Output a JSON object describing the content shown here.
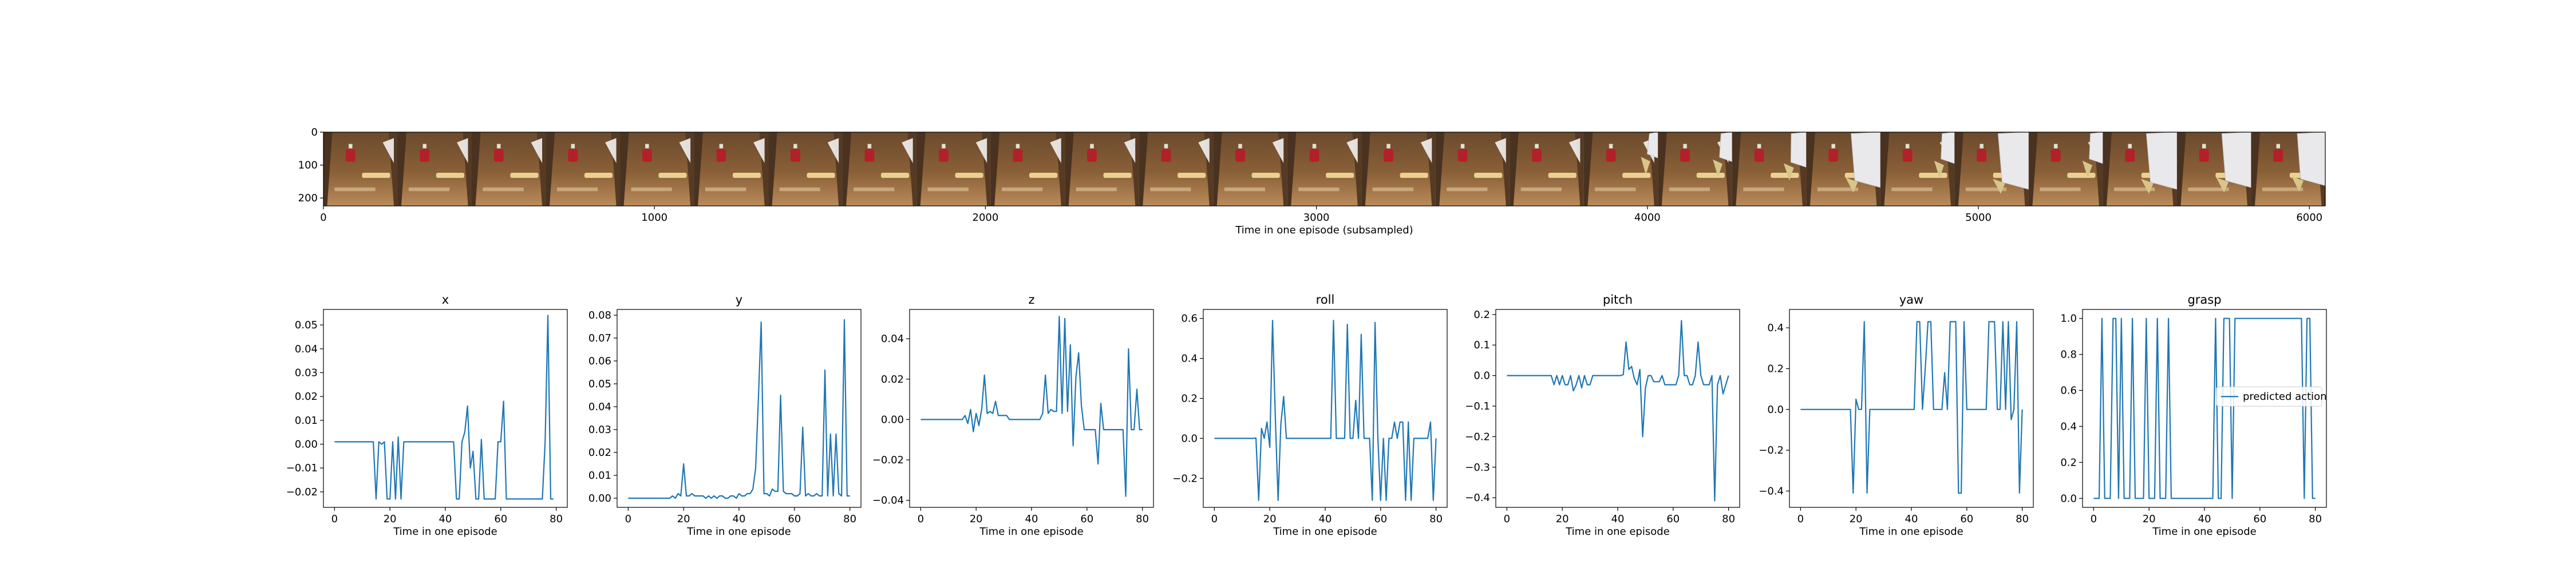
{
  "figure": {
    "strip_xlabel": "Time in one episode (subsampled)",
    "panel_xlabel": "Time in one episode"
  },
  "chart_data": [
    {
      "type": "image-strip",
      "title": "",
      "xlabel": "Time in one episode (subsampled)",
      "ylabel": "",
      "xlim": [
        0,
        6048
      ],
      "ylim": [
        224,
        0
      ],
      "xticks": [
        0,
        1000,
        2000,
        3000,
        4000,
        5000,
        6000
      ],
      "yticks": [
        0,
        100,
        200
      ],
      "frame_count": 27,
      "frame_width": 224,
      "frames": [
        {
          "arm": 0.0,
          "pose": "idle"
        },
        {
          "arm": 0.0,
          "pose": "idle"
        },
        {
          "arm": 0.0,
          "pose": "idle"
        },
        {
          "arm": 0.0,
          "pose": "idle"
        },
        {
          "arm": 0.0,
          "pose": "idle"
        },
        {
          "arm": 0.0,
          "pose": "idle"
        },
        {
          "arm": 0.0,
          "pose": "idle"
        },
        {
          "arm": 0.0,
          "pose": "idle"
        },
        {
          "arm": 0.0,
          "pose": "idle"
        },
        {
          "arm": 0.0,
          "pose": "idle"
        },
        {
          "arm": 0.0,
          "pose": "idle"
        },
        {
          "arm": 0.0,
          "pose": "idle"
        },
        {
          "arm": 0.0,
          "pose": "idle"
        },
        {
          "arm": 0.0,
          "pose": "idle"
        },
        {
          "arm": 0.0,
          "pose": "idle"
        },
        {
          "arm": 0.0,
          "pose": "idle"
        },
        {
          "arm": 0.0,
          "pose": "idle"
        },
        {
          "arm": 0.1,
          "pose": "idle"
        },
        {
          "arm": 0.2,
          "pose": "reach"
        },
        {
          "arm": 0.35,
          "pose": "reach"
        },
        {
          "arm": 0.9,
          "pose": "reach"
        },
        {
          "arm": 0.25,
          "pose": "reach"
        },
        {
          "arm": 0.95,
          "pose": "reach"
        },
        {
          "arm": 0.25,
          "pose": "reach"
        },
        {
          "arm": 0.95,
          "pose": "reach"
        },
        {
          "arm": 0.9,
          "pose": "reach"
        },
        {
          "arm": 0.85,
          "pose": "reach"
        }
      ]
    },
    {
      "type": "line",
      "title": "x",
      "xlabel": "Time in one episode",
      "ylabel": "",
      "xlim": [
        -4,
        84
      ],
      "ylim": [
        -0.0265,
        0.0565
      ],
      "xticks": [
        0,
        20,
        40,
        60,
        80
      ],
      "yticks": [
        -0.02,
        -0.01,
        0.0,
        0.01,
        0.02,
        0.03,
        0.04,
        0.05
      ],
      "ytick_labels": [
        "−0.02",
        "−0.01",
        "0.00",
        "0.01",
        "0.02",
        "0.03",
        "0.04",
        "0.05"
      ],
      "series": [
        {
          "color": "#1f77b4",
          "values": [
            0.001,
            0.001,
            0.001,
            0.001,
            0.001,
            0.001,
            0.001,
            0.001,
            0.001,
            0.001,
            0.001,
            0.001,
            0.001,
            0.001,
            0.001,
            -0.023,
            0.001,
            0.0,
            0.001,
            -0.023,
            -0.023,
            0.001,
            -0.023,
            0.003,
            -0.023,
            0.001,
            0.001,
            0.001,
            0.001,
            0.001,
            0.001,
            0.001,
            0.001,
            0.001,
            0.001,
            0.001,
            0.001,
            0.001,
            0.001,
            0.001,
            0.001,
            0.001,
            0.001,
            0.001,
            -0.023,
            -0.023,
            0.001,
            0.005,
            0.016,
            -0.01,
            -0.003,
            -0.023,
            -0.023,
            0.002,
            -0.023,
            -0.023,
            -0.023,
            -0.023,
            -0.023,
            0.001,
            0.001,
            0.018,
            -0.023,
            -0.023,
            -0.023,
            -0.023,
            -0.023,
            -0.023,
            -0.023,
            -0.023,
            -0.023,
            -0.023,
            -0.023,
            -0.023,
            -0.023,
            -0.023,
            0.001,
            0.054,
            -0.023,
            -0.023
          ]
        }
      ]
    },
    {
      "type": "line",
      "title": "y",
      "xlabel": "Time in one episode",
      "ylabel": "",
      "xlim": [
        -4,
        84
      ],
      "ylim": [
        -0.004,
        0.0825
      ],
      "xticks": [
        0,
        20,
        40,
        60,
        80
      ],
      "yticks": [
        0.0,
        0.01,
        0.02,
        0.03,
        0.04,
        0.05,
        0.06,
        0.07,
        0.08
      ],
      "ytick_labels": [
        "0.00",
        "0.01",
        "0.02",
        "0.03",
        "0.04",
        "0.05",
        "0.06",
        "0.07",
        "0.08"
      ],
      "series": [
        {
          "color": "#1f77b4",
          "values": [
            0,
            0,
            0,
            0,
            0,
            0,
            0,
            0,
            0,
            0,
            0,
            0,
            0,
            0,
            0,
            0,
            0.001,
            0,
            0.002,
            0.001,
            0.015,
            0.001,
            0.001,
            0.002,
            0.001,
            0.001,
            0.001,
            0.001,
            0.0,
            0.001,
            0.0,
            0.001,
            0.0,
            0.001,
            0.001,
            0.0,
            0.0,
            0.001,
            0.001,
            0.0,
            0.002,
            0.001,
            0.001,
            0.002,
            0.002,
            0.004,
            0.013,
            0.044,
            0.077,
            0.002,
            0.002,
            0.001,
            0.004,
            0.003,
            0.003,
            0.045,
            0.003,
            0.002,
            0.002,
            0.002,
            0.001,
            0.001,
            0.002,
            0.031,
            0.001,
            0.002,
            0.001,
            0.001,
            0.002,
            0.001,
            0.001,
            0.056,
            0.001,
            0.028,
            0.001,
            0.028,
            0.002,
            0.001,
            0.078,
            0.001,
            0.001
          ]
        }
      ]
    },
    {
      "type": "line",
      "title": "z",
      "xlabel": "Time in one episode",
      "ylabel": "",
      "xlim": [
        -4,
        84
      ],
      "ylim": [
        -0.0435,
        0.0545
      ],
      "xticks": [
        0,
        20,
        40,
        60,
        80
      ],
      "yticks": [
        -0.04,
        -0.02,
        0.0,
        0.02,
        0.04
      ],
      "ytick_labels": [
        "−0.04",
        "−0.02",
        "0.00",
        "0.02",
        "0.04"
      ],
      "series": [
        {
          "color": "#1f77b4",
          "values": [
            0,
            0,
            0,
            0,
            0,
            0,
            0,
            0,
            0,
            0,
            0,
            0,
            0,
            0,
            0,
            0,
            0.002,
            -0.002,
            0.005,
            -0.006,
            0.003,
            -0.003,
            0.005,
            0.022,
            0.003,
            0.004,
            0.003,
            0.009,
            0.002,
            0.002,
            0.002,
            0.002,
            0,
            0,
            0,
            0,
            0,
            0,
            0,
            0,
            0,
            0,
            0,
            0,
            0.003,
            0.022,
            0.003,
            0.005,
            0.004,
            0.004,
            0.051,
            0.003,
            0.05,
            0.004,
            0.037,
            -0.013,
            0.021,
            0.033,
            0.007,
            -0.005,
            -0.005,
            -0.005,
            -0.005,
            -0.005,
            -0.022,
            0.008,
            -0.005,
            -0.005,
            -0.005,
            -0.005,
            -0.005,
            -0.005,
            -0.005,
            -0.005,
            -0.038,
            0.035,
            -0.005,
            -0.005,
            0.015,
            -0.005,
            -0.005
          ]
        }
      ]
    },
    {
      "type": "line",
      "title": "roll",
      "xlabel": "Time in one episode",
      "ylabel": "",
      "xlim": [
        -4,
        84
      ],
      "ylim": [
        -0.345,
        0.645
      ],
      "xticks": [
        0,
        20,
        40,
        60,
        80
      ],
      "yticks": [
        -0.2,
        0.0,
        0.2,
        0.4,
        0.6
      ],
      "ytick_labels": [
        "−0.2",
        "0.0",
        "0.2",
        "0.4",
        "0.6"
      ],
      "series": [
        {
          "color": "#1f77b4",
          "values": [
            0,
            0,
            0,
            0,
            0,
            0,
            0,
            0,
            0,
            0,
            0,
            0,
            0,
            0,
            0,
            0.002,
            -0.31,
            0.05,
            0.0,
            0.082,
            -0.045,
            0.59,
            0.1,
            -0.31,
            0.071,
            0.21,
            0.0,
            0.0,
            0.0,
            0.0,
            0.0,
            0.0,
            0.0,
            0.0,
            0.0,
            0.0,
            0.0,
            0.0,
            0.0,
            0.0,
            0.0,
            0.0,
            0.0,
            0.59,
            0.0,
            0.0,
            0.0,
            0.0,
            0.57,
            0.0,
            0.0,
            0.19,
            0.0,
            0.52,
            0.0,
            0.0,
            0.0,
            -0.31,
            0.58,
            0.0,
            -0.31,
            0.0,
            -0.31,
            0.0,
            0.0,
            0.082,
            0.0,
            0.082,
            0.082,
            -0.31,
            0.082,
            -0.31,
            0.0,
            0.0,
            0.0,
            0.0,
            0.0,
            0.0,
            0.082,
            -0.31,
            0.0
          ]
        }
      ]
    },
    {
      "type": "line",
      "title": "pitch",
      "xlabel": "Time in one episode",
      "ylabel": "",
      "xlim": [
        -4,
        84
      ],
      "ylim": [
        -0.4316,
        0.2166
      ],
      "xticks": [
        0,
        20,
        40,
        60,
        80
      ],
      "yticks": [
        -0.4,
        -0.3,
        -0.2,
        -0.1,
        0.0,
        0.1,
        0.2
      ],
      "ytick_labels": [
        "−0.4",
        "−0.3",
        "−0.2",
        "−0.1",
        "0.0",
        "0.1",
        "0.2"
      ],
      "series": [
        {
          "color": "#1f77b4",
          "values": [
            0,
            0,
            0,
            0,
            0,
            0,
            0,
            0,
            0,
            0,
            0,
            0,
            0,
            0,
            0,
            0,
            0,
            -0.03,
            0.0,
            -0.03,
            0.0,
            -0.03,
            -0.03,
            0.0,
            -0.05,
            -0.03,
            0.0,
            -0.04,
            0.0,
            -0.03,
            -0.03,
            0.0,
            0.0,
            0.0,
            0.0,
            0.0,
            0.0,
            0.0,
            0.0,
            0.0,
            0.0,
            0.0,
            0.003,
            0.11,
            0.02,
            0.03,
            -0.01,
            -0.03,
            0.02,
            -0.2,
            -0.04,
            0.0,
            0.0,
            -0.02,
            -0.02,
            -0.02,
            0.0,
            -0.03,
            -0.03,
            -0.03,
            -0.03,
            -0.03,
            0.0,
            0.18,
            0.0,
            0.0,
            -0.03,
            -0.03,
            0.0,
            0.11,
            0.0,
            -0.03,
            -0.03,
            -0.03,
            0.0,
            -0.41,
            -0.03,
            0.0,
            -0.06,
            -0.03,
            0.0
          ]
        }
      ]
    },
    {
      "type": "line",
      "title": "yaw",
      "xlabel": "Time in one episode",
      "ylabel": "",
      "xlim": [
        -4,
        84
      ],
      "ylim": [
        -0.48,
        0.49
      ],
      "xticks": [
        0,
        20,
        40,
        60,
        80
      ],
      "yticks": [
        -0.4,
        -0.2,
        0.0,
        0.2,
        0.4
      ],
      "ytick_labels": [
        "−0.4",
        "−0.2",
        "0.0",
        "0.2",
        "0.4"
      ],
      "series": [
        {
          "color": "#1f77b4",
          "values": [
            0,
            0,
            0,
            0,
            0,
            0,
            0,
            0,
            0,
            0,
            0,
            0,
            0,
            0,
            0,
            0,
            0,
            0,
            0,
            -0.41,
            0.05,
            0.0,
            0.0,
            0.43,
            -0.41,
            0.0,
            0.0,
            0.0,
            0.0,
            0.0,
            0.0,
            0.0,
            0.0,
            0.0,
            0.0,
            0.0,
            0.0,
            0.0,
            0.0,
            0.0,
            0.0,
            0.0,
            0.43,
            0.43,
            0.0,
            0.2,
            0.43,
            0.43,
            0.0,
            0.0,
            0.0,
            0.0,
            0.18,
            0.0,
            0.43,
            0.43,
            0.43,
            -0.41,
            -0.41,
            0.43,
            0.0,
            0.0,
            0.0,
            0.0,
            0.0,
            0.0,
            0.0,
            0.0,
            0.43,
            0.43,
            0.43,
            0.0,
            0.0,
            0.43,
            0.0,
            0.43,
            -0.05,
            0.0,
            0.43,
            -0.41,
            0.0
          ]
        }
      ]
    },
    {
      "type": "line",
      "title": "grasp",
      "xlabel": "Time in one episode",
      "ylabel": "",
      "xlim": [
        -4,
        84
      ],
      "ylim": [
        -0.05,
        1.05
      ],
      "xticks": [
        0,
        20,
        40,
        60,
        80
      ],
      "yticks": [
        0.0,
        0.2,
        0.4,
        0.6,
        0.8,
        1.0
      ],
      "ytick_labels": [
        "0.0",
        "0.2",
        "0.4",
        "0.6",
        "0.8",
        "1.0"
      ],
      "legend": {
        "label": "predicted action",
        "placement": "center-right"
      },
      "series": [
        {
          "name": "predicted action",
          "color": "#1f77b4",
          "values": [
            0,
            0,
            0,
            1,
            0,
            0,
            0,
            1,
            1,
            0,
            1,
            0,
            0,
            0,
            1,
            0,
            0,
            0,
            0,
            1,
            0,
            0,
            0,
            1,
            0,
            0,
            0,
            1,
            0,
            0,
            0,
            0,
            0,
            0,
            0,
            0,
            0,
            0,
            0,
            0,
            0,
            0,
            0,
            0,
            1,
            0,
            0,
            1,
            1,
            1,
            0,
            1,
            1,
            1,
            1,
            1,
            1,
            1,
            1,
            1,
            1,
            1,
            1,
            1,
            1,
            1,
            1,
            1,
            1,
            1,
            1,
            1,
            1,
            1,
            1,
            1,
            0,
            1,
            1,
            0,
            0
          ]
        }
      ]
    }
  ]
}
